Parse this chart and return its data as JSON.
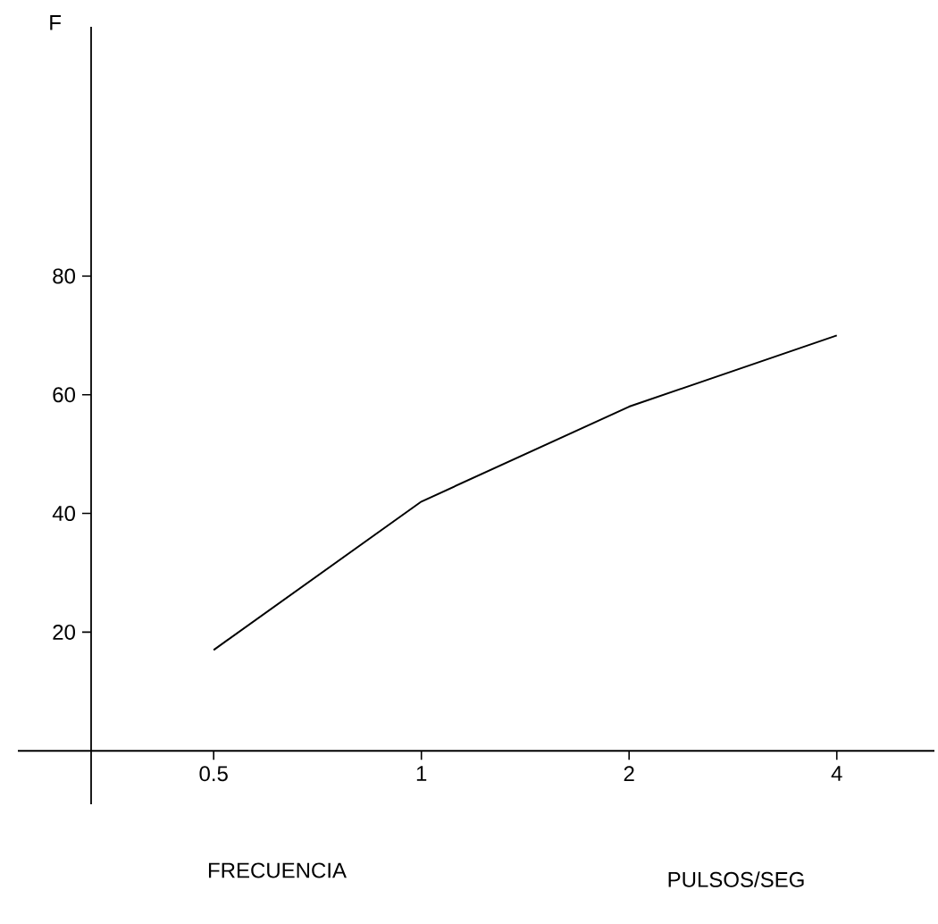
{
  "chart_data": {
    "type": "line",
    "ylabel": "F",
    "xlabel": "FRECUENCIA",
    "annotations": [
      "PULSOS/SEG"
    ],
    "categories": [
      "0.5",
      "1",
      "2",
      "4"
    ],
    "series": [
      {
        "color": "#000000",
        "values": [
          17,
          42,
          58,
          70
        ]
      }
    ],
    "ylim": [
      -9,
      122
    ],
    "yticks": [
      20,
      40,
      60,
      80
    ],
    "grid": false,
    "marker": "none",
    "line_style": "solid"
  }
}
